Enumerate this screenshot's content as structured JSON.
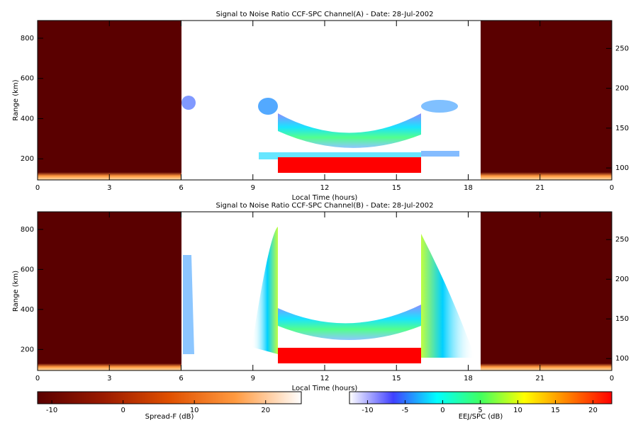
{
  "chart_data": [
    {
      "type": "heatmap",
      "title": "Signal to Noise Ratio CCF-SPC Channel(A) - Date: 28-Jul-2002",
      "x_label": "Local Time (hours)",
      "y_label": "Range (km)",
      "xlim": [
        0,
        24
      ],
      "xticks": [
        0,
        3,
        6,
        9,
        12,
        15,
        18,
        21,
        {
          "value": 24,
          "label": "0"
        }
      ],
      "ylim": [
        95,
        888
      ],
      "yticks": [
        200,
        400,
        600,
        800
      ],
      "y2lim": [
        85,
        285
      ],
      "y2ticks": [
        100,
        150,
        200,
        250
      ]
    },
    {
      "type": "heatmap",
      "title": "Signal to Noise Ratio CCF-SPC Channel(B) - Date: 28-Jul-2002",
      "x_label": "Local Time (hours)",
      "y_label": "Range (km)",
      "xlim": [
        0,
        24
      ],
      "xticks": [
        0,
        3,
        6,
        9,
        12,
        15,
        18,
        21,
        {
          "value": 24,
          "label": "0"
        }
      ],
      "ylim": [
        95,
        888
      ],
      "yticks": [
        200,
        400,
        600,
        800
      ],
      "y2lim": [
        85,
        285
      ],
      "y2ticks": [
        100,
        150,
        200,
        250
      ]
    }
  ],
  "colorbars": [
    {
      "label": "Spread-F (dB)",
      "lim": [
        -12,
        25
      ],
      "ticks": [
        -10,
        0,
        10,
        20
      ],
      "colors": [
        "#5a0000",
        "#9a1a00",
        "#e05000",
        "#ff9a40",
        "#ffffff"
      ]
    },
    {
      "label": "EEJ/SPC (dB)",
      "lim": [
        -12.4,
        22.5
      ],
      "ticks": [
        -10,
        -5,
        0,
        5,
        10,
        15,
        20
      ],
      "colors": [
        "#ffffff",
        "#4040ff",
        "#00ffff",
        "#40ff60",
        "#ffff00",
        "#ff8000",
        "#ff0000"
      ]
    }
  ]
}
